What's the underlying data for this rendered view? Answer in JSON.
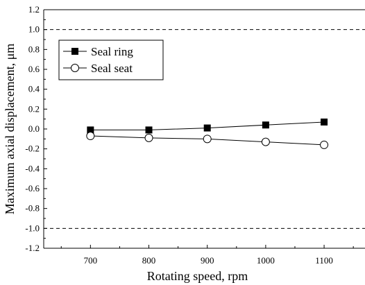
{
  "chart_data": {
    "type": "line",
    "xlabel": "Rotating speed, rpm",
    "ylabel": "Maximum axial displacement, μm",
    "x": [
      700,
      800,
      900,
      1000,
      1100
    ],
    "xticks": [
      700,
      800,
      900,
      1000,
      1100
    ],
    "xlim": [
      620,
      1170
    ],
    "ylim": [
      -1.2,
      1.2
    ],
    "yticks": [
      -1.2,
      -1.0,
      -0.8,
      -0.6,
      -0.4,
      -0.2,
      0.0,
      0.2,
      0.4,
      0.6,
      0.8,
      1.0,
      1.2
    ],
    "ytick_labels": [
      "-1.2",
      "-1.0",
      "-0.8",
      "-0.6",
      "-0.4",
      "-0.2",
      "0.0",
      "0.2",
      "0.4",
      "0.6",
      "0.8",
      "1.0",
      "1.2"
    ],
    "reference_lines": [
      1.0,
      -1.0
    ],
    "series": [
      {
        "name": "Seal ring",
        "marker": "filled-square",
        "values": [
          -0.01,
          -0.01,
          0.01,
          0.04,
          0.07
        ]
      },
      {
        "name": "Seal seat",
        "marker": "open-circle",
        "values": [
          -0.07,
          -0.09,
          -0.1,
          -0.13,
          -0.16
        ]
      }
    ],
    "legend_position": "top-left",
    "grid": false
  }
}
